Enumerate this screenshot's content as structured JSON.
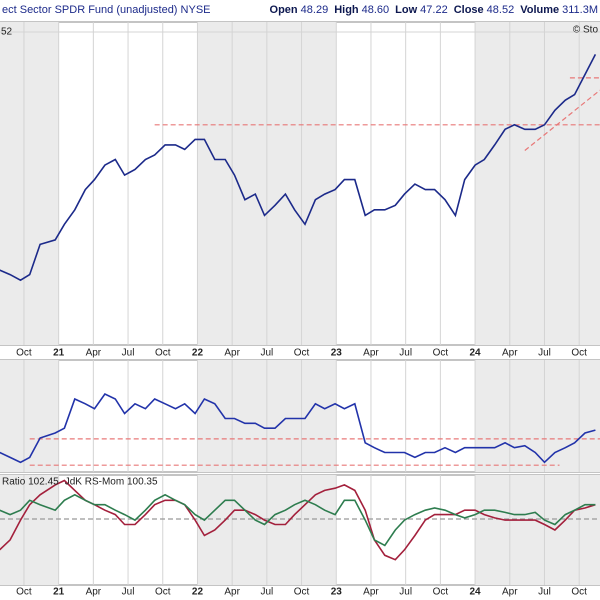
{
  "header": {
    "title": "ect Sector SPDR Fund (unadjusted)",
    "exchange": "NYSE",
    "credit": "© Sto",
    "quote": [
      {
        "label": "Open",
        "value": "48.29"
      },
      {
        "label": "High",
        "value": "48.60"
      },
      {
        "label": "Low",
        "value": "47.22"
      },
      {
        "label": "Close",
        "value": "48.52"
      },
      {
        "label": "Volume",
        "value": "311.3M"
      }
    ]
  },
  "chart_data": [
    {
      "type": "line",
      "xlim": [
        -2.07,
        49.8
      ],
      "ylim": [
        24,
        52.9
      ],
      "yticks": [
        52
      ],
      "grid": true,
      "xticks": [
        {
          "value": 0,
          "label": "Oct"
        },
        {
          "value": 3,
          "label": "21"
        },
        {
          "value": 6,
          "label": "Apr"
        },
        {
          "value": 9,
          "label": "Jul"
        },
        {
          "value": 12,
          "label": "Oct"
        },
        {
          "value": 15,
          "label": "22"
        },
        {
          "value": 18,
          "label": "Apr"
        },
        {
          "value": 21,
          "label": "Jul"
        },
        {
          "value": 24,
          "label": "Oct"
        },
        {
          "value": 27,
          "label": "23"
        },
        {
          "value": 30,
          "label": "Apr"
        },
        {
          "value": 33,
          "label": "Jul"
        },
        {
          "value": 36,
          "label": "Oct"
        },
        {
          "value": 39,
          "label": "24"
        },
        {
          "value": 42,
          "label": "Apr"
        },
        {
          "value": 45,
          "label": "Jul"
        },
        {
          "value": 48,
          "label": "Oct"
        }
      ],
      "x": [
        -2.1,
        -1.2,
        -0.3,
        0.5,
        1.4,
        2.7,
        3.5,
        4.4,
        5.3,
        6.1,
        7.0,
        7.9,
        8.7,
        9.6,
        10.5,
        11.3,
        12.2,
        13.1,
        13.9,
        14.8,
        15.6,
        16.5,
        17.4,
        18.2,
        19.1,
        20.0,
        20.8,
        21.7,
        22.6,
        23.4,
        24.3,
        25.2,
        26.0,
        26.9,
        27.7,
        28.6,
        29.5,
        30.3,
        31.2,
        32.1,
        32.9,
        33.8,
        34.7,
        35.5,
        36.4,
        37.3,
        38.1,
        39.0,
        39.8,
        40.7,
        41.6,
        42.4,
        43.3,
        44.2,
        45.0,
        45.9,
        46.8,
        47.6,
        48.5,
        49.4
      ],
      "series": [
        {
          "color": "#1c2a8a",
          "values": [
            30.7,
            30.3,
            29.8,
            30.3,
            33.0,
            33.4,
            34.8,
            36.1,
            37.9,
            38.8,
            40.1,
            40.6,
            39.2,
            39.7,
            40.6,
            41.0,
            41.9,
            41.9,
            41.5,
            42.4,
            42.4,
            40.6,
            40.6,
            39.2,
            37.0,
            37.5,
            35.6,
            36.5,
            37.5,
            36.1,
            34.8,
            37.0,
            37.5,
            37.9,
            38.8,
            38.8,
            35.6,
            36.1,
            36.1,
            36.5,
            37.5,
            38.4,
            37.9,
            37.9,
            37.0,
            35.6,
            38.8,
            40.1,
            40.6,
            41.9,
            43.3,
            43.7,
            43.3,
            43.3,
            43.7,
            45.0,
            45.9,
            46.4,
            48.2,
            50.0
          ]
        }
      ],
      "levels": [
        {
          "value": 43.7,
          "from": 11.3,
          "to": 49.8
        },
        {
          "value": 47.9,
          "from": 47.2,
          "to": 49.8
        }
      ],
      "trendlines": [
        {
          "x": [
            43.3,
            49.8
          ],
          "y": [
            41.4,
            46.8
          ]
        }
      ],
      "level_color": "#e87878"
    },
    {
      "type": "line",
      "xlim": [
        -2.07,
        49.8
      ],
      "ylim": [
        0,
        100
      ],
      "x": [
        -2.1,
        -1.2,
        -0.3,
        0.5,
        1.4,
        2.7,
        3.5,
        4.4,
        5.3,
        6.1,
        7.0,
        7.9,
        8.7,
        9.6,
        10.5,
        11.3,
        12.2,
        13.1,
        13.9,
        14.8,
        15.6,
        16.5,
        17.4,
        18.2,
        19.1,
        20.0,
        20.8,
        21.7,
        22.6,
        23.4,
        24.3,
        25.2,
        26.0,
        26.9,
        27.7,
        28.6,
        29.5,
        30.3,
        31.2,
        32.1,
        32.9,
        33.8,
        34.7,
        35.5,
        36.4,
        37.3,
        38.1,
        39.0,
        39.8,
        40.7,
        41.6,
        42.4,
        43.3,
        44.2,
        45.0,
        45.9,
        46.8,
        47.6,
        48.5,
        49.4
      ],
      "series": [
        {
          "color": "#2233aa",
          "values": [
            17.4,
            13.0,
            8.7,
            13.0,
            30.4,
            34.8,
            39.1,
            65.2,
            60.9,
            56.5,
            69.6,
            65.2,
            52.2,
            60.9,
            56.5,
            65.2,
            60.9,
            56.5,
            60.9,
            52.2,
            65.2,
            60.9,
            47.8,
            47.8,
            43.5,
            43.5,
            39.1,
            39.1,
            47.8,
            47.8,
            47.8,
            60.9,
            56.5,
            60.9,
            56.5,
            60.9,
            26.1,
            21.7,
            17.4,
            17.4,
            17.4,
            13.0,
            17.4,
            17.4,
            21.7,
            17.4,
            21.7,
            21.7,
            21.7,
            21.7,
            26.1,
            21.7,
            23.5,
            17.4,
            8.7,
            17.4,
            21.7,
            26.1,
            34.8,
            37.4
          ]
        }
      ],
      "levels": [
        {
          "value": 29.6,
          "from": 0.5,
          "to": 49.8
        },
        {
          "value": 6.1,
          "from": 0.5,
          "to": 46.3
        }
      ],
      "level_color": "#e87878"
    },
    {
      "type": "line",
      "xlim": [
        -2.07,
        49.8
      ],
      "ylim": [
        94,
        104
      ],
      "xticks": [
        {
          "value": 0,
          "label": "Oct"
        },
        {
          "value": 3,
          "label": "21"
        },
        {
          "value": 6,
          "label": "Apr"
        },
        {
          "value": 9,
          "label": "Jul"
        },
        {
          "value": 12,
          "label": "Oct"
        },
        {
          "value": 15,
          "label": "22"
        },
        {
          "value": 18,
          "label": "Apr"
        },
        {
          "value": 21,
          "label": "Jul"
        },
        {
          "value": 24,
          "label": "Oct"
        },
        {
          "value": 27,
          "label": "23"
        },
        {
          "value": 30,
          "label": "Apr"
        },
        {
          "value": 33,
          "label": "Jul"
        },
        {
          "value": 36,
          "label": "Oct"
        },
        {
          "value": 39,
          "label": "24"
        },
        {
          "value": 42,
          "label": "Apr"
        },
        {
          "value": 45,
          "label": "Jul"
        },
        {
          "value": 48,
          "label": "Oct"
        }
      ],
      "x": [
        -2.1,
        -1.2,
        -0.3,
        0.5,
        1.4,
        2.7,
        3.5,
        4.4,
        5.3,
        6.1,
        7.0,
        7.9,
        8.7,
        9.6,
        10.5,
        11.3,
        12.2,
        13.1,
        13.9,
        14.8,
        15.6,
        16.5,
        17.4,
        18.2,
        19.1,
        20.0,
        20.8,
        21.7,
        22.6,
        23.4,
        24.3,
        25.2,
        26.0,
        26.9,
        27.7,
        28.6,
        29.5,
        30.3,
        31.2,
        32.1,
        32.9,
        33.8,
        34.7,
        35.5,
        36.4,
        37.3,
        38.1,
        39.0,
        39.8,
        40.7,
        41.6,
        42.4,
        43.3,
        44.2,
        45.0,
        45.9,
        46.8,
        47.6,
        48.5,
        49.4
      ],
      "series": [
        {
          "name": "Ratio 102.45",
          "color": "#a3203c",
          "values": [
            97.2,
            98.1,
            99.9,
            101.3,
            102.2,
            103.1,
            103.5,
            102.6,
            101.7,
            101.3,
            100.8,
            100.4,
            99.5,
            99.5,
            100.4,
            101.3,
            101.7,
            101.7,
            101.3,
            99.9,
            98.5,
            99.0,
            99.9,
            100.8,
            100.8,
            100.4,
            99.9,
            99.5,
            99.5,
            100.4,
            101.3,
            102.2,
            102.6,
            102.8,
            103.1,
            102.6,
            100.8,
            98.1,
            96.7,
            96.3,
            97.2,
            98.5,
            99.9,
            100.4,
            100.4,
            100.4,
            100.8,
            100.8,
            100.4,
            100.1,
            99.9,
            99.9,
            99.9,
            99.9,
            99.5,
            99.0,
            99.9,
            100.8,
            101.0,
            101.3
          ]
        },
        {
          "name": "JdK RS-Mom 100.35",
          "color": "#2e7d4f",
          "values": [
            100.8,
            100.4,
            100.8,
            101.7,
            101.3,
            100.8,
            101.7,
            102.2,
            101.7,
            101.3,
            101.3,
            100.8,
            100.4,
            99.9,
            100.8,
            101.7,
            102.2,
            101.7,
            101.3,
            100.4,
            99.9,
            100.8,
            101.7,
            101.7,
            100.8,
            99.9,
            99.5,
            100.4,
            100.8,
            101.3,
            101.7,
            101.3,
            100.8,
            100.4,
            101.7,
            101.7,
            99.9,
            98.1,
            97.6,
            99.0,
            99.9,
            100.4,
            100.8,
            101.0,
            100.8,
            100.4,
            100.1,
            100.4,
            100.8,
            100.8,
            100.6,
            100.4,
            100.4,
            100.6,
            99.9,
            99.5,
            100.4,
            100.8,
            101.3,
            101.3
          ]
        }
      ],
      "levels": [
        {
          "value": 100,
          "from": -2.07,
          "to": 49.8
        }
      ],
      "level_color": "#999999"
    }
  ]
}
